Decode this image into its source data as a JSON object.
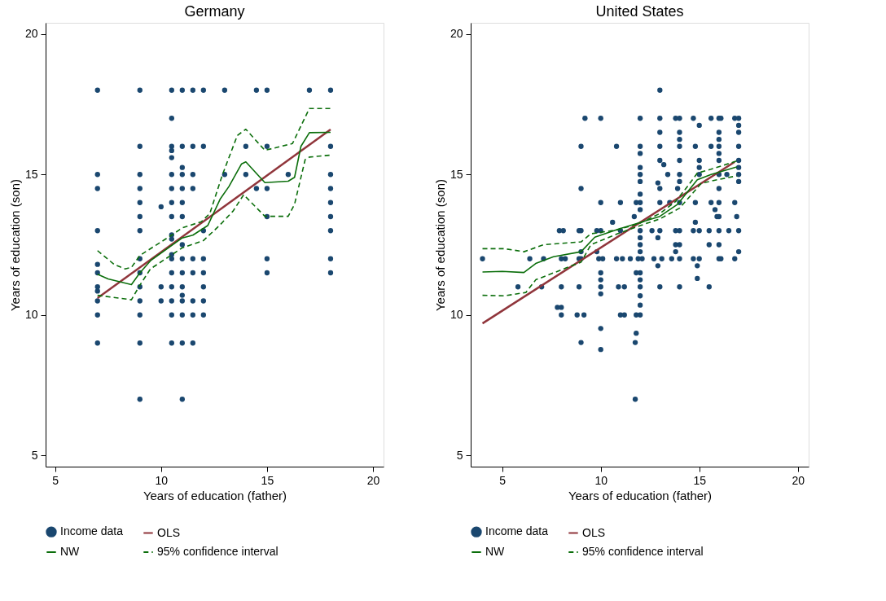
{
  "chart_data": [
    {
      "type": "scatter",
      "title": "Germany",
      "xlabel": "Years of education (father)",
      "ylabel": "Years of education (son)",
      "xlim": [
        4.55,
        20.5
      ],
      "ylim": [
        4.6,
        20.4
      ],
      "xticks": [
        5,
        10,
        15,
        20
      ],
      "yticks": [
        5,
        10,
        15,
        20
      ],
      "grid": false,
      "legend": "bottom",
      "series": [
        {
          "name": "Income data",
          "type": "scatter",
          "marker": "circle",
          "color": "#1a476f",
          "x": [
            7,
            7,
            7,
            7,
            7,
            7,
            7,
            7,
            7,
            7,
            7,
            9,
            9,
            9,
            9,
            9,
            9,
            9,
            9,
            9,
            9,
            9,
            9,
            9,
            9,
            10,
            10,
            10,
            10.5,
            10.5,
            10.5,
            10.5,
            10.5,
            10.5,
            10.5,
            10.5,
            10.5,
            10.5,
            10.5,
            10.5,
            10.5,
            10.5,
            10.5,
            10.5,
            10.5,
            10.5,
            11,
            11,
            11,
            11,
            11,
            11,
            11,
            11,
            11,
            11,
            11,
            11,
            11,
            11,
            11,
            11,
            11.5,
            11.5,
            11.5,
            11.5,
            11.5,
            11.5,
            11.5,
            11.5,
            11.5,
            12,
            12,
            12,
            12,
            12,
            12,
            12,
            12,
            13,
            13,
            14,
            14,
            14.5,
            14.5,
            15,
            15,
            15,
            15,
            15,
            15,
            16,
            17,
            18,
            18,
            18,
            18,
            18,
            18,
            18,
            18,
            18
          ],
          "values": [
            18,
            15,
            14.5,
            13,
            11.8,
            11.5,
            11,
            10.85,
            10.5,
            10,
            9,
            18,
            16,
            15,
            14.5,
            14,
            13.5,
            13,
            12,
            11.5,
            11,
            10.5,
            10,
            9,
            7,
            13.85,
            11,
            10.5,
            18,
            17,
            16,
            15.85,
            15.6,
            15,
            14.5,
            14,
            13.5,
            12.85,
            12.7,
            12.15,
            12,
            11.5,
            11,
            10.5,
            10,
            9,
            18,
            16,
            15.25,
            15,
            14.5,
            14,
            13.5,
            12.5,
            12,
            11.5,
            11,
            10.7,
            10.5,
            10,
            9,
            7,
            18,
            16,
            15,
            14.5,
            12,
            11.5,
            10.5,
            10,
            9,
            18,
            16,
            13,
            12,
            11.5,
            11,
            10.5,
            10,
            18,
            15,
            16,
            15,
            18,
            14.5,
            18,
            16,
            14.5,
            13.5,
            12,
            11.5,
            15,
            18,
            18,
            16,
            15,
            14.5,
            14,
            13.5,
            13,
            12,
            11.5
          ]
        },
        {
          "name": "OLS",
          "type": "line",
          "line_style": "solid",
          "color": "#90353b",
          "x": [
            7,
            18
          ],
          "values": [
            10.6,
            16.6
          ]
        },
        {
          "name": "NW",
          "type": "line",
          "line_style": "solid",
          "color": "#0b6e0b",
          "x": [
            7,
            7.5,
            8.6,
            9,
            9.5,
            11,
            11.5,
            12.2,
            12.8,
            13.2,
            13.8,
            14,
            14.9,
            16,
            16.3,
            16.6,
            17,
            18
          ],
          "values": [
            11.45,
            11.28,
            11.08,
            11.5,
            11.93,
            12.74,
            12.84,
            13.18,
            14.14,
            14.57,
            15.38,
            15.45,
            14.71,
            14.76,
            14.9,
            16.0,
            16.49,
            16.5
          ]
        },
        {
          "name": "95% confidence interval",
          "type": "line",
          "line_style": "dashed",
          "color": "#0b6e0b",
          "x": [
            7,
            7.8,
            8.3,
            8.6,
            9,
            10.5,
            11,
            11.9,
            12.3,
            12.9,
            13.6,
            14,
            14.9,
            16.2,
            17,
            18
          ],
          "values": [
            12.29,
            11.79,
            11.64,
            11.69,
            12.12,
            12.84,
            13.1,
            13.32,
            13.61,
            15.0,
            16.39,
            16.61,
            15.86,
            16.1,
            17.35,
            17.35
          ]
        },
        {
          "type": "line",
          "line_style": "dashed",
          "color": "#0b6e0b",
          "x": [
            7,
            8.6,
            9,
            9.5,
            11,
            12,
            12.75,
            13.4,
            13.9,
            14.9,
            16,
            16.3,
            16.8,
            17,
            18
          ],
          "values": [
            10.7,
            10.54,
            11.06,
            11.64,
            12.39,
            12.65,
            13.18,
            13.7,
            14.28,
            13.51,
            13.51,
            13.94,
            15.53,
            15.62,
            15.69
          ]
        }
      ]
    },
    {
      "type": "scatter",
      "title": "United States",
      "xlabel": "Years of education (father)",
      "ylabel": "Years of education (son)",
      "xlim": [
        3.4,
        20.55
      ],
      "ylim": [
        4.6,
        20.4
      ],
      "xticks": [
        5,
        10,
        15,
        20
      ],
      "yticks": [
        5,
        10,
        15,
        20
      ],
      "grid": false,
      "legend": "bottom",
      "series": [
        {
          "name": "Income data",
          "type": "scatter",
          "marker": "circle",
          "color": "#1a476f",
          "x": [
            13,
            9.2,
            10,
            12,
            13,
            13.8,
            14,
            14.7,
            15.6,
            16,
            16.1,
            16.8,
            17,
            15,
            17,
            13,
            14,
            16,
            17,
            14,
            16,
            9,
            10.8,
            12,
            13,
            14,
            14.8,
            15.6,
            16,
            17,
            12,
            16,
            13,
            14,
            15,
            16,
            17,
            12,
            15,
            17,
            13.2,
            12,
            13.4,
            14,
            15,
            16,
            16.4,
            17,
            12,
            14,
            12.9,
            17,
            9,
            13,
            13.9,
            16,
            12,
            10,
            11,
            11.8,
            12,
            13,
            13.5,
            14,
            14.8,
            15.6,
            16,
            16.8,
            12,
            15.8,
            11.7,
            16,
            16.9,
            15.9,
            10.6,
            14.8,
            7.9,
            8.1,
            8.9,
            9,
            9.8,
            10,
            11,
            12,
            12.6,
            13,
            13.8,
            14,
            14.7,
            15,
            15.5,
            16,
            16.5,
            17,
            12.9,
            12,
            12,
            13.8,
            14,
            15.5,
            16,
            9,
            9.8,
            12,
            13.8,
            17,
            4,
            6.4,
            7.1,
            8,
            8.2,
            8.9,
            9,
            9.9,
            10.1,
            10.8,
            11.1,
            11.5,
            11.9,
            12.1,
            12.7,
            13.1,
            13.6,
            14,
            14.7,
            15,
            16,
            16.1,
            16.8,
            12.9,
            14.9,
            10,
            11.8,
            12,
            10,
            12,
            14.9,
            5.8,
            7,
            8,
            8.9,
            10,
            10.9,
            11.2,
            12,
            13,
            14,
            15.5,
            10,
            12,
            12,
            7.8,
            8,
            8,
            8.8,
            9.15,
            11,
            11.2,
            11.8,
            12,
            10,
            11.8,
            9,
            11.75,
            10,
            11.75
          ],
          "values": [
            18,
            17,
            17,
            17,
            17,
            17,
            17,
            17,
            17,
            17,
            17,
            17,
            17,
            16.75,
            16.75,
            16.5,
            16.5,
            16.5,
            16.5,
            16.25,
            16.25,
            16,
            16,
            16,
            16,
            16,
            16,
            16,
            16,
            16,
            15.75,
            15.75,
            15.5,
            15.5,
            15.5,
            15.5,
            15.5,
            15.25,
            15.25,
            15.25,
            15.35,
            15,
            15,
            15,
            15,
            15,
            15,
            15,
            14.75,
            14.75,
            14.7,
            14.75,
            14.5,
            14.5,
            14.5,
            14.5,
            14.3,
            14,
            14,
            14,
            14,
            14,
            14,
            14,
            14,
            14,
            14,
            14,
            13.75,
            13.75,
            13.5,
            13.5,
            13.5,
            13.5,
            13.3,
            13.3,
            13,
            13,
            13,
            13,
            13,
            13,
            13,
            13,
            13,
            13,
            13,
            13,
            13,
            13,
            13,
            13,
            13,
            13,
            12.75,
            12.75,
            12.5,
            12.5,
            12.5,
            12.5,
            12.5,
            12.25,
            12.25,
            12.25,
            12.25,
            12.25,
            12,
            12,
            12,
            12,
            12,
            12,
            12,
            12,
            12,
            12,
            12,
            12,
            12,
            12,
            12,
            12,
            12,
            12,
            12,
            12,
            12,
            12,
            12,
            11.75,
            11.75,
            11.5,
            11.5,
            11.5,
            11.25,
            11.25,
            11.3,
            11,
            11,
            11,
            11,
            11,
            11,
            11,
            11,
            11,
            11,
            11,
            10.75,
            10.68,
            10.35,
            10.27,
            10.27,
            10,
            10,
            10,
            10,
            10,
            10,
            10,
            9.52,
            9.35,
            9.02,
            9.02,
            8.77,
            7
          ]
        },
        {
          "name": "OLS",
          "type": "line",
          "line_style": "solid",
          "color": "#90353b",
          "x": [
            4,
            16.8
          ],
          "values": [
            9.7,
            15.45
          ]
        },
        {
          "name": "NW",
          "type": "line",
          "line_style": "solid",
          "color": "#0b6e0b",
          "x": [
            4,
            5,
            6.1,
            6.7,
            7.6,
            9,
            9.7,
            11,
            12,
            13,
            13.9,
            14.4,
            14.9,
            15.6,
            16.9
          ],
          "values": [
            11.53,
            11.55,
            11.51,
            11.83,
            12.07,
            12.25,
            12.77,
            13.08,
            13.29,
            13.51,
            13.94,
            14.38,
            14.81,
            15.0,
            15.27
          ]
        },
        {
          "name": "95% confidence interval",
          "type": "line",
          "line_style": "dashed",
          "color": "#0b6e0b",
          "x": [
            4,
            5.1,
            6.1,
            7.1,
            9,
            9.5,
            10.85,
            12,
            13,
            13.8,
            14.4,
            14.9,
            15.6,
            16.9
          ],
          "values": [
            12.36,
            12.36,
            12.25,
            12.5,
            12.6,
            12.89,
            13.03,
            13.27,
            13.61,
            14.04,
            14.57,
            15.05,
            15.19,
            15.48
          ]
        },
        {
          "type": "line",
          "line_style": "dashed",
          "color": "#0b6e0b",
          "x": [
            4,
            5.1,
            6.2,
            6.7,
            9,
            9.5,
            10.85,
            12,
            13,
            14,
            14.6,
            15.1,
            15.9,
            16.9
          ],
          "values": [
            10.7,
            10.68,
            10.8,
            11.25,
            11.88,
            12.5,
            12.89,
            13.18,
            13.42,
            13.8,
            14.28,
            14.69,
            14.81,
            14.95
          ]
        }
      ]
    }
  ]
}
